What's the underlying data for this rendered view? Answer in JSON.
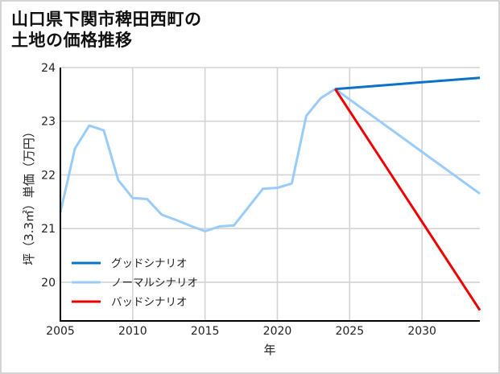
{
  "title": {
    "line1": "山口県下関市稗田西町の",
    "line2": "土地の価格推移"
  },
  "colors": {
    "good": "#0a72c9",
    "normal": "#99ccfa",
    "bad": "#ee0000",
    "grid": "#d3d3d3",
    "axis": "#000000",
    "border": "#d4d4d4"
  },
  "chart_data": {
    "type": "line",
    "title": "山口県下関市稗田西町の土地の価格推移",
    "xlabel": "年",
    "ylabel": "坪（3.3㎡）単価（万円）",
    "xlim": [
      2005,
      2034
    ],
    "ylim": [
      19.28,
      24
    ],
    "xticks": [
      2005,
      2010,
      2015,
      2020,
      2025,
      2030
    ],
    "yticks": [
      20,
      21,
      22,
      23,
      24
    ],
    "grid": true,
    "legend_position": "lower left",
    "series": [
      {
        "name": "グッドシナリオ",
        "color": "#0a72c9",
        "x": [
          2024,
          2034
        ],
        "values": [
          23.6,
          23.81
        ]
      },
      {
        "name": "ノーマルシナリオ",
        "color": "#99ccfa",
        "x": [
          2005,
          2006,
          2007,
          2008,
          2009,
          2010,
          2011,
          2012,
          2013,
          2014,
          2015,
          2016,
          2017,
          2019,
          2020,
          2021,
          2022,
          2023,
          2024,
          2034
        ],
        "values": [
          21.3,
          22.49,
          22.92,
          22.83,
          21.9,
          21.57,
          21.55,
          21.26,
          21.16,
          21.05,
          20.95,
          21.04,
          21.06,
          21.74,
          21.76,
          21.84,
          23.1,
          23.43,
          23.6,
          21.65
        ]
      },
      {
        "name": "バッドシナリオ",
        "color": "#ee0000",
        "x": [
          2024,
          2034
        ],
        "values": [
          23.6,
          19.48
        ]
      }
    ]
  }
}
